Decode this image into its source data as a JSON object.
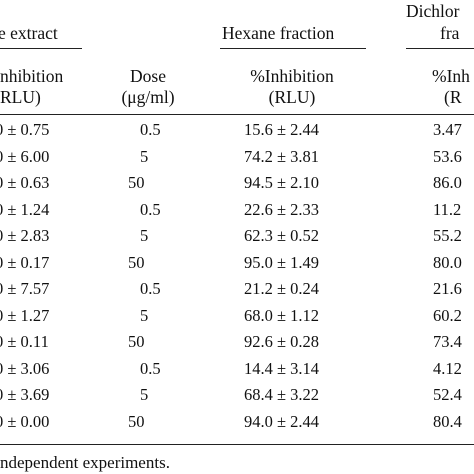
{
  "header": {
    "col_extract_group": "e extract",
    "col_inhib_a_line1": "nhibition",
    "col_inhib_a_line2": "RLU)",
    "col_dose_line1": "Dose",
    "col_dose_line2": "(μg/ml)",
    "col_hexane_group": "Hexane fraction",
    "col_hexane_line1": "%Inhibition",
    "col_hexane_line2": "(RLU)",
    "col_dichlo_group_line1": "Dichlor",
    "col_dichlo_group_line2": "fra",
    "col_dichlo_line1": "%Inh",
    "col_dichlo_line2": "(R"
  },
  "rows": [
    {
      "extract": "0 ± 0.75",
      "dose": "0.5",
      "hexane": "15.6 ± 2.44",
      "dichlo": "3.47"
    },
    {
      "extract": "0 ± 6.00",
      "dose": "5",
      "hexane": "74.2 ± 3.81",
      "dichlo": "53.6"
    },
    {
      "extract": "0 ± 0.63",
      "dose": "50",
      "hexane": "94.5 ± 2.10",
      "dichlo": "86.0"
    },
    {
      "extract": "0 ± 1.24",
      "dose": "0.5",
      "hexane": "22.6 ± 2.33",
      "dichlo": "11.2"
    },
    {
      "extract": "0 ± 2.83",
      "dose": "5",
      "hexane": "62.3 ± 0.52",
      "dichlo": "55.2"
    },
    {
      "extract": "0 ± 0.17",
      "dose": "50",
      "hexane": "95.0 ± 1.49",
      "dichlo": "80.0"
    },
    {
      "extract": "0 ± 7.57",
      "dose": "0.5",
      "hexane": "21.2 ± 0.24",
      "dichlo": "21.6"
    },
    {
      "extract": "0 ± 1.27",
      "dose": "5",
      "hexane": "68.0 ± 1.12",
      "dichlo": "60.2"
    },
    {
      "extract": "0 ± 0.11",
      "dose": "50",
      "hexane": "92.6 ± 0.28",
      "dichlo": "73.4"
    },
    {
      "extract": "0 ± 3.06",
      "dose": "0.5",
      "hexane": "14.4 ± 3.14",
      "dichlo": "4.12"
    },
    {
      "extract": "0 ± 3.69",
      "dose": "5",
      "hexane": "68.4 ± 3.22",
      "dichlo": "52.4"
    },
    {
      "extract": "0 ± 0.00",
      "dose": "50",
      "hexane": "94.0 ± 2.44",
      "dichlo": "80.4"
    }
  ],
  "footnote": "ndependent experiments."
}
